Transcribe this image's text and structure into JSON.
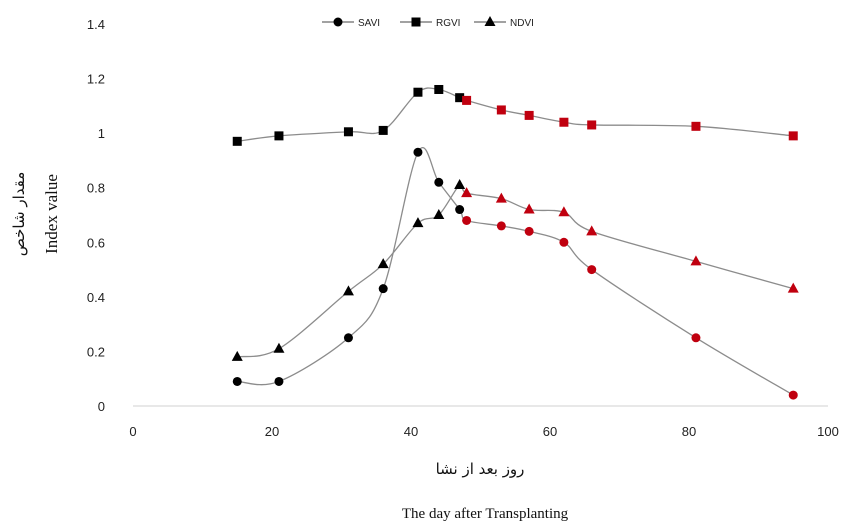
{
  "chart_data": {
    "type": "line",
    "xlabel": "The day after Transplanting",
    "xlabel_fa": "روز بعد از نشا",
    "ylabel": "Index value",
    "ylabel_fa": "مقدار شاخص",
    "xlim": [
      0,
      100
    ],
    "ylim": [
      0,
      1.4
    ],
    "x_ticks": [
      0,
      20,
      40,
      60,
      80,
      100
    ],
    "y_ticks": [
      "0",
      "0.2",
      "0.4",
      "0.6",
      "0.8",
      "1",
      "1.2",
      "1.4"
    ],
    "grid": false,
    "legend_position": "top-center",
    "highlight_color": "#c0000f",
    "base_color": "#000000",
    "line_color": "#8c8c8c",
    "highlight_from_x": 48,
    "series": [
      {
        "name": "SAVI",
        "marker": "circle",
        "x": [
          15,
          21,
          31,
          36,
          41,
          44,
          47,
          48,
          53,
          57,
          62,
          66,
          81,
          95
        ],
        "y": [
          0.09,
          0.09,
          0.25,
          0.43,
          0.93,
          0.82,
          0.72,
          0.68,
          0.66,
          0.64,
          0.6,
          0.5,
          0.25,
          0.04
        ]
      },
      {
        "name": "RGVI",
        "marker": "square",
        "x": [
          15,
          21,
          31,
          36,
          41,
          44,
          47,
          48,
          53,
          57,
          62,
          66,
          81,
          95
        ],
        "y": [
          0.97,
          0.99,
          1.005,
          1.01,
          1.15,
          1.16,
          1.13,
          1.12,
          1.085,
          1.065,
          1.04,
          1.03,
          1.025,
          0.99
        ]
      },
      {
        "name": "NDVI",
        "marker": "triangle",
        "x": [
          15,
          21,
          31,
          36,
          41,
          44,
          47,
          48,
          53,
          57,
          62,
          66,
          81,
          95
        ],
        "y": [
          0.18,
          0.21,
          0.42,
          0.52,
          0.67,
          0.7,
          0.81,
          0.78,
          0.76,
          0.72,
          0.71,
          0.64,
          0.53,
          0.43
        ]
      }
    ]
  }
}
